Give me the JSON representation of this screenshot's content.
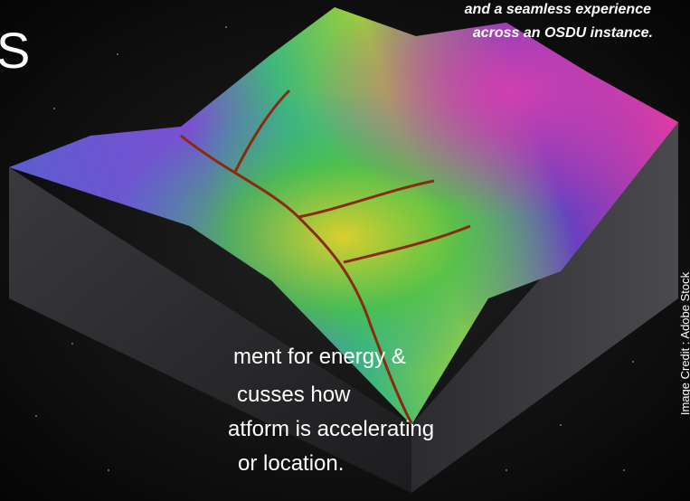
{
  "title_fragment": "S",
  "caption": {
    "lines": [
      "and a seamless experience",
      "across an OSDU instance."
    ]
  },
  "body": {
    "lines": [
      "ment for energy &",
      "cusses how",
      "atform is accelerating",
      "or location."
    ]
  },
  "credit": "Image Credit : Adobe Stock"
}
